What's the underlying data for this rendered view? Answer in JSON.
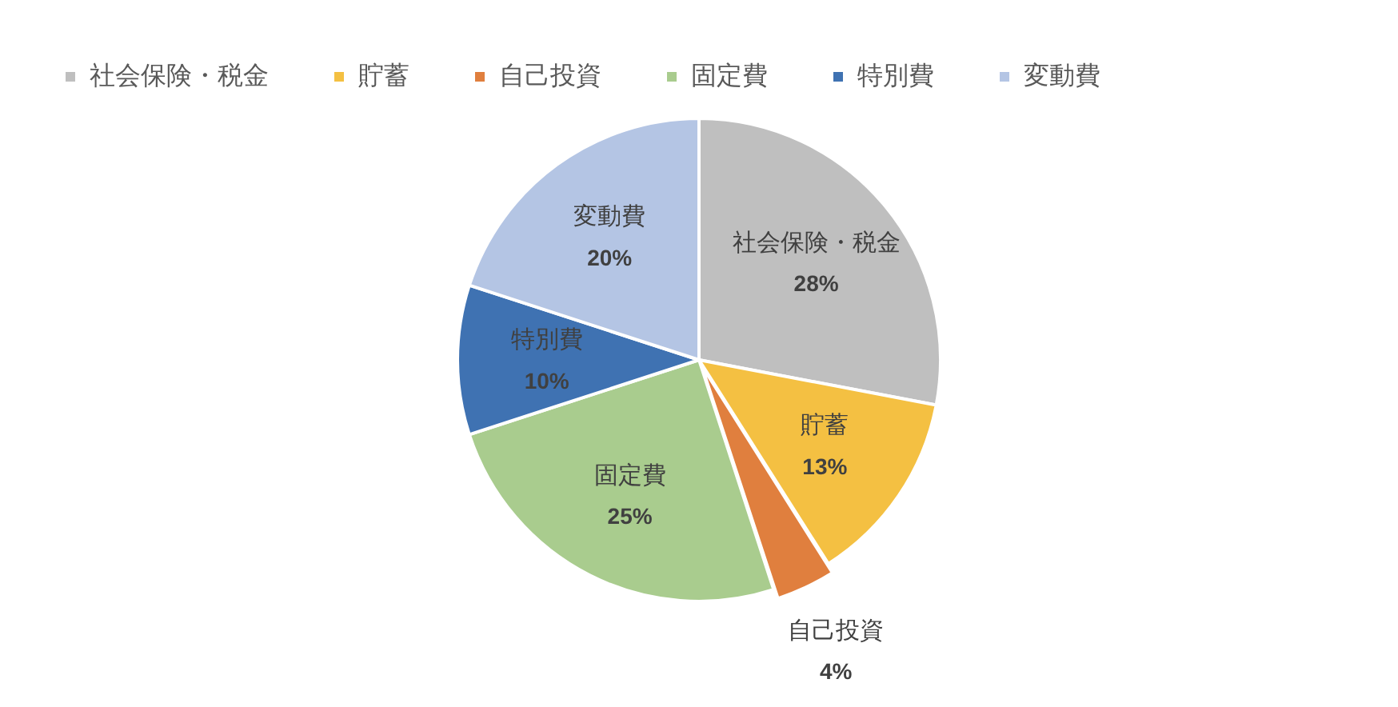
{
  "chart_data": {
    "type": "pie",
    "categories": [
      "社会保険・税金",
      "貯蓄",
      "自己投資",
      "固定費",
      "特別費",
      "変動費"
    ],
    "values": [
      28,
      13,
      4,
      25,
      10,
      20
    ],
    "value_labels": [
      "28%",
      "13%",
      "4%",
      "25%",
      "10%",
      "20%"
    ],
    "colors": [
      "#bfbfbf",
      "#f4c042",
      "#e07f3e",
      "#a9cc8e",
      "#3f72b2",
      "#b4c5e4"
    ],
    "legend": "top"
  }
}
